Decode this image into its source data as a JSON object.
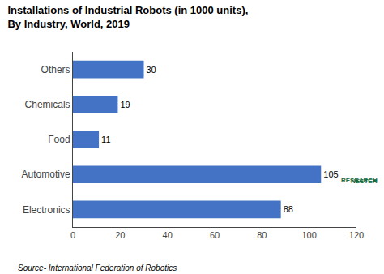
{
  "chart_data": {
    "type": "bar",
    "orientation": "horizontal",
    "title": "Installations of Industrial Robots (in 1000 units),",
    "subtitle": "By Industry, World, 2019",
    "categories": [
      "Electronics",
      "Automotive",
      "Food",
      "Chemicals",
      "Others"
    ],
    "values": [
      88,
      105,
      11,
      19,
      30
    ],
    "color": "#4472C4",
    "xlim": [
      0,
      120
    ],
    "xticks": [
      0,
      20,
      40,
      60,
      80,
      100,
      120
    ],
    "grid": false,
    "data_labels": true,
    "annotations": [
      {
        "text": "Source- International Federation of Robotics"
      },
      {
        "text": "RESEARCH",
        "color": "#1a6b3c"
      },
      {
        "text": "NESTER",
        "color": "#1a6b3c"
      }
    ]
  }
}
